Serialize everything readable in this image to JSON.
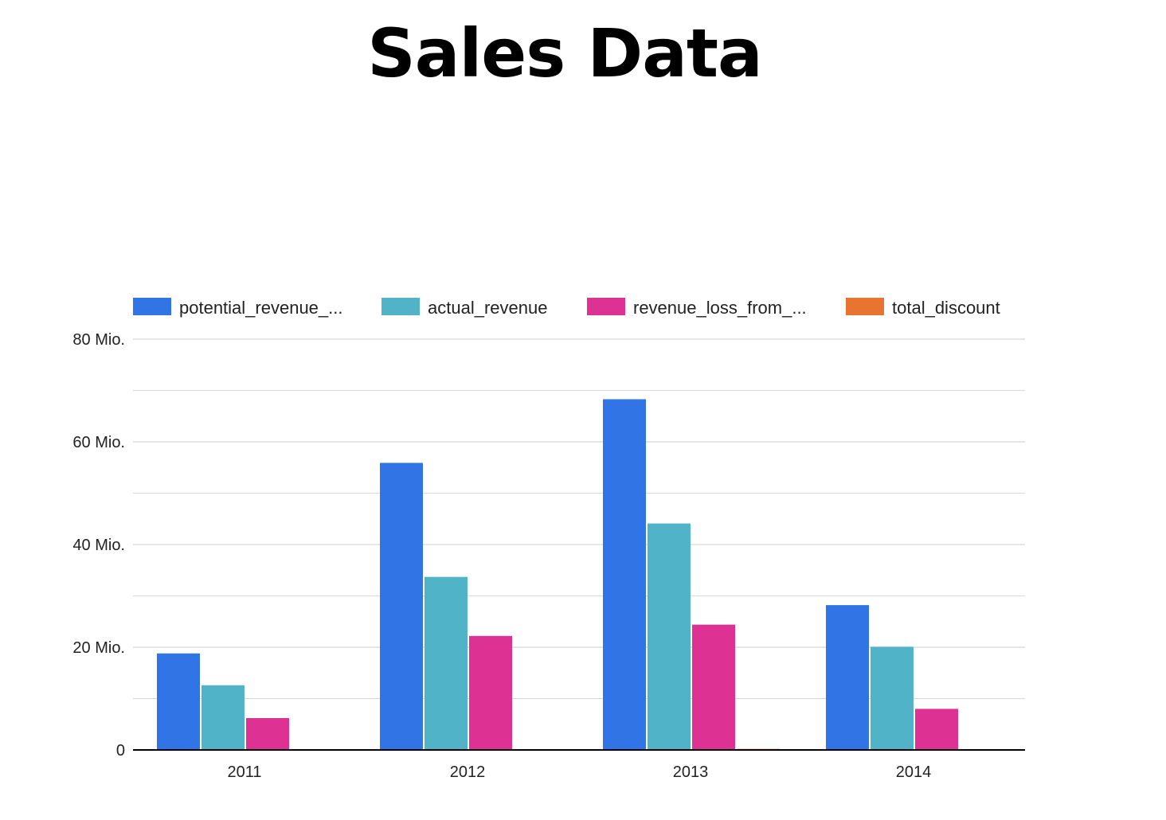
{
  "chart_data": {
    "type": "bar",
    "title": "Sales Data",
    "categories": [
      "2011",
      "2012",
      "2013",
      "2014"
    ],
    "series": [
      {
        "name": "potential_revenue_...",
        "color": "#3174e6",
        "values": [
          18.8,
          55.9,
          68.3,
          28.2
        ]
      },
      {
        "name": "actual_revenue",
        "color": "#50b3c8",
        "values": [
          12.6,
          33.7,
          44.1,
          20.1
        ]
      },
      {
        "name": "revenue_loss_from_...",
        "color": "#dd3194",
        "values": [
          6.2,
          22.2,
          24.4,
          8.0
        ]
      },
      {
        "name": "total_discount",
        "color": "#e8752f",
        "values": [
          0.0,
          0.0,
          0.2,
          0.0
        ]
      }
    ],
    "y_ticks": [
      {
        "value": 0,
        "label": "0"
      },
      {
        "value": 20,
        "label": "20 Mio."
      },
      {
        "value": 40,
        "label": "40 Mio."
      },
      {
        "value": 60,
        "label": "60 Mio."
      },
      {
        "value": 80,
        "label": "80 Mio."
      }
    ],
    "ylim": [
      0,
      80
    ],
    "minor_gridlines": [
      10,
      30,
      50,
      70
    ],
    "grid": true,
    "legend_position": "top",
    "xlabel": "",
    "ylabel": ""
  }
}
